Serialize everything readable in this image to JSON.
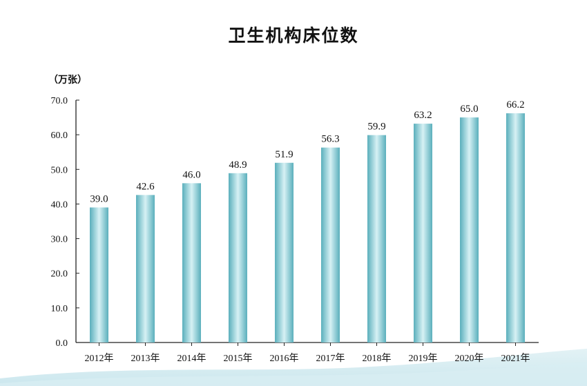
{
  "chart_data": {
    "type": "bar",
    "title": "卫生机构床位数",
    "unit_label": "（万张）",
    "categories": [
      "2012年",
      "2013年",
      "2014年",
      "2015年",
      "2016年",
      "2017年",
      "2018年",
      "2019年",
      "2020年",
      "2021年"
    ],
    "values": [
      39.0,
      42.6,
      46.0,
      48.9,
      51.9,
      56.3,
      59.9,
      63.2,
      65.0,
      66.2
    ],
    "value_labels": [
      "39.0",
      "42.6",
      "46.0",
      "48.9",
      "51.9",
      "56.3",
      "59.9",
      "63.2",
      "65.0",
      "66.2"
    ],
    "ylim": [
      0,
      70
    ],
    "yticks": [
      "0.0",
      "10.0",
      "20.0",
      "30.0",
      "40.0",
      "50.0",
      "60.0",
      "70.0"
    ],
    "xlabel": "",
    "ylabel": "",
    "grid": false,
    "colors": {
      "bar_edge": "#5fb3bf",
      "bar_center": "#d4f0f3",
      "axis": "#222222"
    }
  }
}
